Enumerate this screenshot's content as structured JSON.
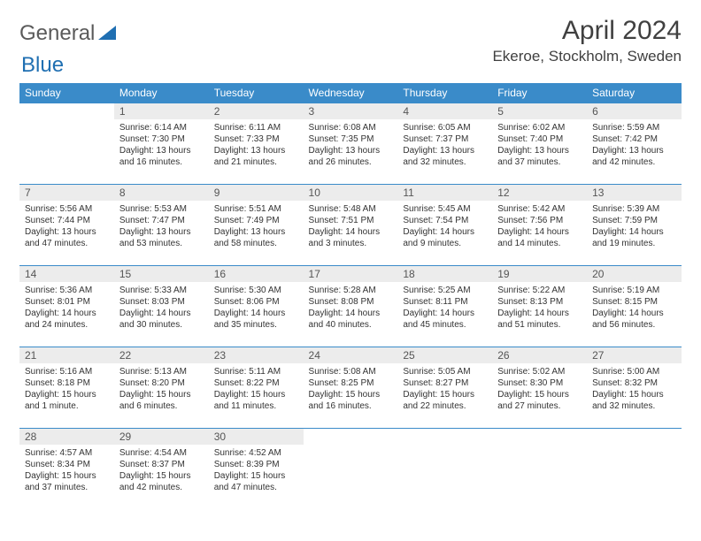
{
  "brand": {
    "word1": "General",
    "word2": "Blue",
    "logo_color": "#1f6fb2"
  },
  "title": "April 2024",
  "location": "Ekeroe, Stockholm, Sweden",
  "colors": {
    "header_bg": "#3a8bc9",
    "header_text": "#ffffff",
    "daynum_bg": "#ececec",
    "border": "#3a8bc9",
    "page_bg": "#ffffff",
    "text": "#333333",
    "brand_gray": "#5a5a5a"
  },
  "weekdays": [
    "Sunday",
    "Monday",
    "Tuesday",
    "Wednesday",
    "Thursday",
    "Friday",
    "Saturday"
  ],
  "weeks": [
    [
      {
        "n": "",
        "lines": [
          "",
          "",
          "",
          ""
        ],
        "empty": true
      },
      {
        "n": "1",
        "lines": [
          "Sunrise: 6:14 AM",
          "Sunset: 7:30 PM",
          "Daylight: 13 hours",
          "and 16 minutes."
        ]
      },
      {
        "n": "2",
        "lines": [
          "Sunrise: 6:11 AM",
          "Sunset: 7:33 PM",
          "Daylight: 13 hours",
          "and 21 minutes."
        ]
      },
      {
        "n": "3",
        "lines": [
          "Sunrise: 6:08 AM",
          "Sunset: 7:35 PM",
          "Daylight: 13 hours",
          "and 26 minutes."
        ]
      },
      {
        "n": "4",
        "lines": [
          "Sunrise: 6:05 AM",
          "Sunset: 7:37 PM",
          "Daylight: 13 hours",
          "and 32 minutes."
        ]
      },
      {
        "n": "5",
        "lines": [
          "Sunrise: 6:02 AM",
          "Sunset: 7:40 PM",
          "Daylight: 13 hours",
          "and 37 minutes."
        ]
      },
      {
        "n": "6",
        "lines": [
          "Sunrise: 5:59 AM",
          "Sunset: 7:42 PM",
          "Daylight: 13 hours",
          "and 42 minutes."
        ]
      }
    ],
    [
      {
        "n": "7",
        "lines": [
          "Sunrise: 5:56 AM",
          "Sunset: 7:44 PM",
          "Daylight: 13 hours",
          "and 47 minutes."
        ]
      },
      {
        "n": "8",
        "lines": [
          "Sunrise: 5:53 AM",
          "Sunset: 7:47 PM",
          "Daylight: 13 hours",
          "and 53 minutes."
        ]
      },
      {
        "n": "9",
        "lines": [
          "Sunrise: 5:51 AM",
          "Sunset: 7:49 PM",
          "Daylight: 13 hours",
          "and 58 minutes."
        ]
      },
      {
        "n": "10",
        "lines": [
          "Sunrise: 5:48 AM",
          "Sunset: 7:51 PM",
          "Daylight: 14 hours",
          "and 3 minutes."
        ]
      },
      {
        "n": "11",
        "lines": [
          "Sunrise: 5:45 AM",
          "Sunset: 7:54 PM",
          "Daylight: 14 hours",
          "and 9 minutes."
        ]
      },
      {
        "n": "12",
        "lines": [
          "Sunrise: 5:42 AM",
          "Sunset: 7:56 PM",
          "Daylight: 14 hours",
          "and 14 minutes."
        ]
      },
      {
        "n": "13",
        "lines": [
          "Sunrise: 5:39 AM",
          "Sunset: 7:59 PM",
          "Daylight: 14 hours",
          "and 19 minutes."
        ]
      }
    ],
    [
      {
        "n": "14",
        "lines": [
          "Sunrise: 5:36 AM",
          "Sunset: 8:01 PM",
          "Daylight: 14 hours",
          "and 24 minutes."
        ]
      },
      {
        "n": "15",
        "lines": [
          "Sunrise: 5:33 AM",
          "Sunset: 8:03 PM",
          "Daylight: 14 hours",
          "and 30 minutes."
        ]
      },
      {
        "n": "16",
        "lines": [
          "Sunrise: 5:30 AM",
          "Sunset: 8:06 PM",
          "Daylight: 14 hours",
          "and 35 minutes."
        ]
      },
      {
        "n": "17",
        "lines": [
          "Sunrise: 5:28 AM",
          "Sunset: 8:08 PM",
          "Daylight: 14 hours",
          "and 40 minutes."
        ]
      },
      {
        "n": "18",
        "lines": [
          "Sunrise: 5:25 AM",
          "Sunset: 8:11 PM",
          "Daylight: 14 hours",
          "and 45 minutes."
        ]
      },
      {
        "n": "19",
        "lines": [
          "Sunrise: 5:22 AM",
          "Sunset: 8:13 PM",
          "Daylight: 14 hours",
          "and 51 minutes."
        ]
      },
      {
        "n": "20",
        "lines": [
          "Sunrise: 5:19 AM",
          "Sunset: 8:15 PM",
          "Daylight: 14 hours",
          "and 56 minutes."
        ]
      }
    ],
    [
      {
        "n": "21",
        "lines": [
          "Sunrise: 5:16 AM",
          "Sunset: 8:18 PM",
          "Daylight: 15 hours",
          "and 1 minute."
        ]
      },
      {
        "n": "22",
        "lines": [
          "Sunrise: 5:13 AM",
          "Sunset: 8:20 PM",
          "Daylight: 15 hours",
          "and 6 minutes."
        ]
      },
      {
        "n": "23",
        "lines": [
          "Sunrise: 5:11 AM",
          "Sunset: 8:22 PM",
          "Daylight: 15 hours",
          "and 11 minutes."
        ]
      },
      {
        "n": "24",
        "lines": [
          "Sunrise: 5:08 AM",
          "Sunset: 8:25 PM",
          "Daylight: 15 hours",
          "and 16 minutes."
        ]
      },
      {
        "n": "25",
        "lines": [
          "Sunrise: 5:05 AM",
          "Sunset: 8:27 PM",
          "Daylight: 15 hours",
          "and 22 minutes."
        ]
      },
      {
        "n": "26",
        "lines": [
          "Sunrise: 5:02 AM",
          "Sunset: 8:30 PM",
          "Daylight: 15 hours",
          "and 27 minutes."
        ]
      },
      {
        "n": "27",
        "lines": [
          "Sunrise: 5:00 AM",
          "Sunset: 8:32 PM",
          "Daylight: 15 hours",
          "and 32 minutes."
        ]
      }
    ],
    [
      {
        "n": "28",
        "lines": [
          "Sunrise: 4:57 AM",
          "Sunset: 8:34 PM",
          "Daylight: 15 hours",
          "and 37 minutes."
        ]
      },
      {
        "n": "29",
        "lines": [
          "Sunrise: 4:54 AM",
          "Sunset: 8:37 PM",
          "Daylight: 15 hours",
          "and 42 minutes."
        ]
      },
      {
        "n": "30",
        "lines": [
          "Sunrise: 4:52 AM",
          "Sunset: 8:39 PM",
          "Daylight: 15 hours",
          "and 47 minutes."
        ]
      },
      {
        "n": "",
        "lines": [
          "",
          "",
          "",
          ""
        ],
        "empty": true
      },
      {
        "n": "",
        "lines": [
          "",
          "",
          "",
          ""
        ],
        "empty": true
      },
      {
        "n": "",
        "lines": [
          "",
          "",
          "",
          ""
        ],
        "empty": true
      },
      {
        "n": "",
        "lines": [
          "",
          "",
          "",
          ""
        ],
        "empty": true
      }
    ]
  ]
}
